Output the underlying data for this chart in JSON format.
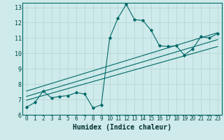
{
  "title": "",
  "xlabel": "Humidex (Indice chaleur)",
  "ylabel": "",
  "bg_color": "#ceeaea",
  "grid_color": "#b8d8d8",
  "line_color": "#006868",
  "xlim": [
    -0.5,
    23.5
  ],
  "ylim": [
    6,
    13.3
  ],
  "xticks": [
    0,
    1,
    2,
    3,
    4,
    5,
    6,
    7,
    8,
    9,
    10,
    11,
    12,
    13,
    14,
    15,
    16,
    17,
    18,
    19,
    20,
    21,
    22,
    23
  ],
  "yticks": [
    6,
    7,
    8,
    9,
    10,
    11,
    12,
    13
  ],
  "series1_x": [
    0,
    1,
    2,
    3,
    4,
    5,
    6,
    7,
    8,
    9,
    10,
    11,
    12,
    13,
    14,
    15,
    16,
    17,
    18,
    19,
    20,
    21,
    22,
    23
  ],
  "series1_y": [
    6.5,
    6.8,
    7.55,
    7.1,
    7.2,
    7.25,
    7.45,
    7.35,
    6.45,
    6.65,
    11.0,
    12.3,
    13.2,
    12.2,
    12.15,
    11.5,
    10.5,
    10.45,
    10.5,
    9.9,
    10.3,
    11.1,
    11.0,
    11.3
  ],
  "series2_x": [
    0,
    23
  ],
  "series2_y": [
    7.2,
    10.9
  ],
  "series3_x": [
    0,
    23
  ],
  "series3_y": [
    7.55,
    11.35
  ],
  "series4_x": [
    0,
    23
  ],
  "series4_y": [
    6.95,
    10.45
  ],
  "xlabel_fontsize": 7,
  "tick_fontsize": 5.5
}
